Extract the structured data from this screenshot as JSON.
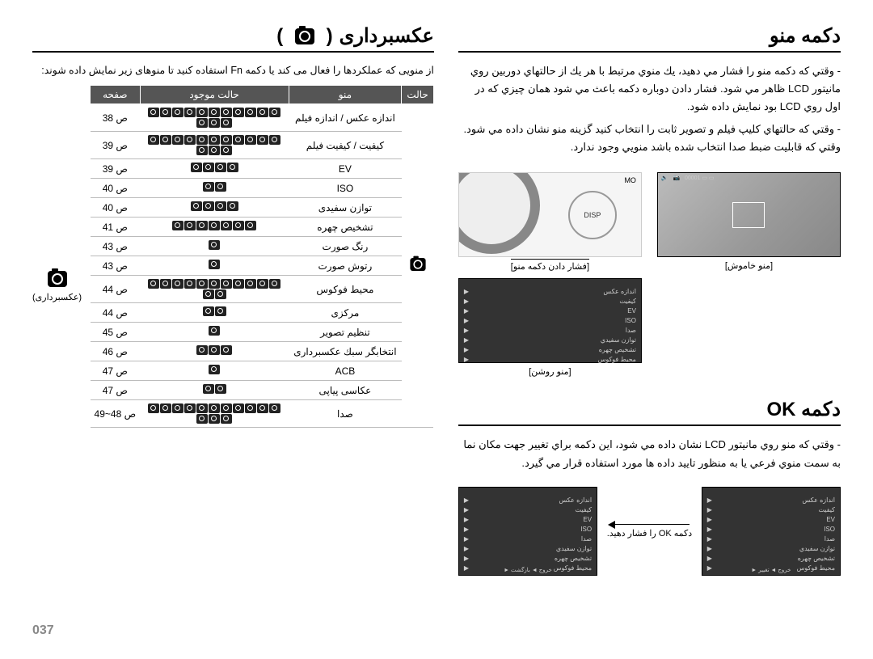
{
  "page_number": "037",
  "right": {
    "title_menu": "دكمه منو",
    "para1": "- وقتي كه دكمه منو را فشار مي دهيد، يك منوي مرتبط با هر يك از حالتهاي دوربين روي مانيتور LCD ظاهر مي شود. فشار دادن دوباره دكمه باعث مي شود همان چيزي كه در اول روي LCD بود نمايش داده شود.",
    "para2": "- وقتي كه حالتهاي كليپ فيلم و تصوير ثابت را انتخاب كنيد گزينه منو نشان داده مي شود. وقتي كه قابليت ضبط صدا انتخاب شده باشد منويي وجود ندارد.",
    "shot_off_caption": "[منو خاموش]",
    "shot_on_caption": "[منو روشن]",
    "dial_caption": "[فشار دادن دكمه منو]",
    "menu_items": [
      "اندازه عكس",
      "كيفيت",
      "EV",
      "ISO",
      "صدا",
      "توازن سفيدي",
      "تشخيص چهره",
      "محيط فوكوس"
    ],
    "disp_label": "DISP",
    "mo_label": "MO",
    "title_ok": "دكمه OK",
    "ok_para": "- وقتي كه منو روي مانيتور LCD نشان داده مي شود، اين دكمه براي تغيير جهت مكان نما به سمت منوي فرعي يا به منظور تاييد داده ها مورد استفاده قرار مي گيرد.",
    "ok_mid_label": "دكمه OK را فشار دهيد.",
    "ok_left_items": [
      "اندازه عكس",
      "كيفيت",
      "EV",
      "ISO",
      "صدا",
      "توازن سفيدي",
      "تشخيص چهره",
      "محيط فوكوس"
    ],
    "ok_right_items": [
      "اندازه عكس",
      "كيفيت",
      "EV",
      "ISO",
      "صدا",
      "توازن سفيدي",
      "تشخيص چهره",
      "محيط فوكوس"
    ],
    "ok_footer_right": "خروج ◄   تغيير ►",
    "ok_footer_left": "خروج ◄   بازگشت ►"
  },
  "left": {
    "title": "عكسبرداری",
    "intro": "از منویی که عملکردها را فعال می کند یا دکمه Fn استفاده کنید تا منوهای زیر نمایش داده شوند:",
    "icon_label": "(عکسبرداری)",
    "headers": {
      "h1": "حالت",
      "h2": "منو",
      "h3": "حالت موجود",
      "h4": "صفحه"
    },
    "rows": [
      {
        "state": "",
        "menu": "اندازه عكس / اندازه فيلم",
        "modes": 14,
        "page": "ص 38"
      },
      {
        "state": "",
        "menu": "كيفيت / كيفيت فيلم",
        "modes": 14,
        "page": "ص 39"
      },
      {
        "state": "",
        "menu": "EV",
        "modes": 4,
        "page": "ص 39"
      },
      {
        "state": "",
        "menu": "ISO",
        "modes": 2,
        "page": "ص 40"
      },
      {
        "state": "",
        "menu": "توازن سفیدی",
        "modes": 4,
        "page": "ص 40"
      },
      {
        "state": "",
        "menu": "تشخیص چهره",
        "modes": 7,
        "page": "ص 41"
      },
      {
        "state": "",
        "menu": "رنگ صورت",
        "modes": 1,
        "page": "ص 43"
      },
      {
        "state": "",
        "menu": "رتوش صورت",
        "modes": 1,
        "page": "ص 43"
      },
      {
        "state": "",
        "menu": "محیط فوکوس",
        "modes": 13,
        "page": "ص 44"
      },
      {
        "state": "",
        "menu": "مرکزی",
        "modes": 2,
        "page": "ص 44"
      },
      {
        "state": "",
        "menu": "تنظیم تصویر",
        "modes": 1,
        "page": "ص 45"
      },
      {
        "state": "",
        "menu": "انتخابگر سبك عکسبرداری",
        "modes": 3,
        "page": "ص 46"
      },
      {
        "state": "",
        "menu": "ACB",
        "modes": 1,
        "page": "ص 47"
      },
      {
        "state": "",
        "menu": "عكاسی پیاپی",
        "modes": 2,
        "page": "ص 47"
      },
      {
        "state": "",
        "menu": "صدا",
        "modes": 14,
        "page": "ص 48~49"
      }
    ]
  }
}
